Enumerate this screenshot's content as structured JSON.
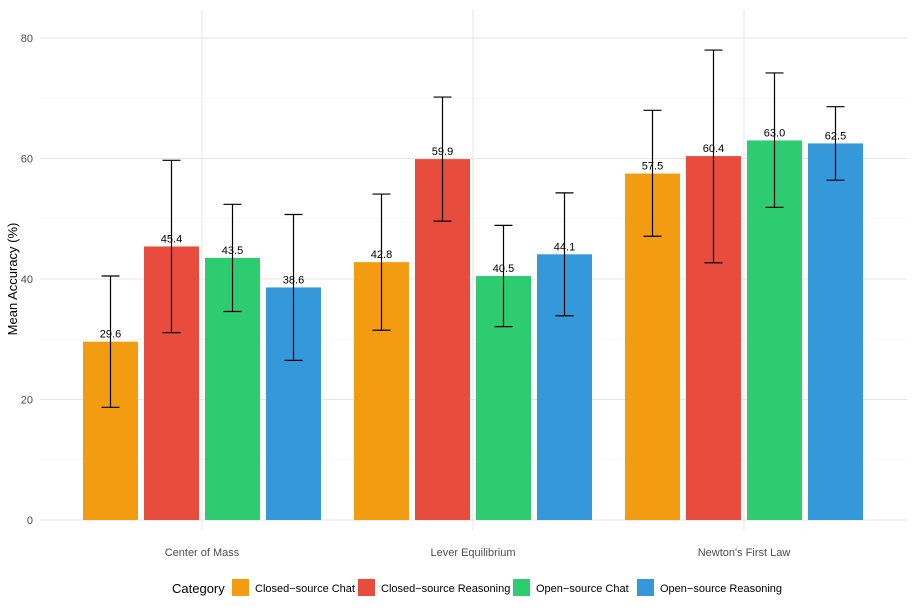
{
  "chart_data": {
    "type": "bar",
    "title": "",
    "xlabel": "",
    "ylabel": "Mean Accuracy (%)",
    "ylim": [
      0,
      83
    ],
    "yticks": [
      0,
      20,
      40,
      60,
      80
    ],
    "grid": true,
    "legend_position": "bottom",
    "legend_title": "Category",
    "categories": [
      "Center of Mass",
      "Lever Equilibrium",
      "Newton's First Law"
    ],
    "series": [
      {
        "name": "Closed−source Chat",
        "color": "#F39C12",
        "values": [
          29.6,
          42.8,
          57.5
        ],
        "error_low": [
          18.7,
          31.5,
          47.1
        ],
        "error_high": [
          40.5,
          54.1,
          68.0
        ]
      },
      {
        "name": "Closed−source Reasoning",
        "color": "#E74C3C",
        "values": [
          45.4,
          59.9,
          60.4
        ],
        "error_low": [
          31.1,
          49.6,
          42.7
        ],
        "error_high": [
          59.7,
          70.2,
          78.0
        ]
      },
      {
        "name": "Open−source Chat",
        "color": "#2ECC71",
        "values": [
          43.5,
          40.5,
          63.0
        ],
        "error_low": [
          34.6,
          32.1,
          51.9
        ],
        "error_high": [
          52.4,
          48.9,
          74.2
        ]
      },
      {
        "name": "Open−source Reasoning",
        "color": "#3498DB",
        "values": [
          38.6,
          44.1,
          62.5
        ],
        "error_low": [
          26.5,
          33.9,
          56.4
        ],
        "error_high": [
          50.7,
          54.3,
          68.6
        ]
      }
    ]
  }
}
